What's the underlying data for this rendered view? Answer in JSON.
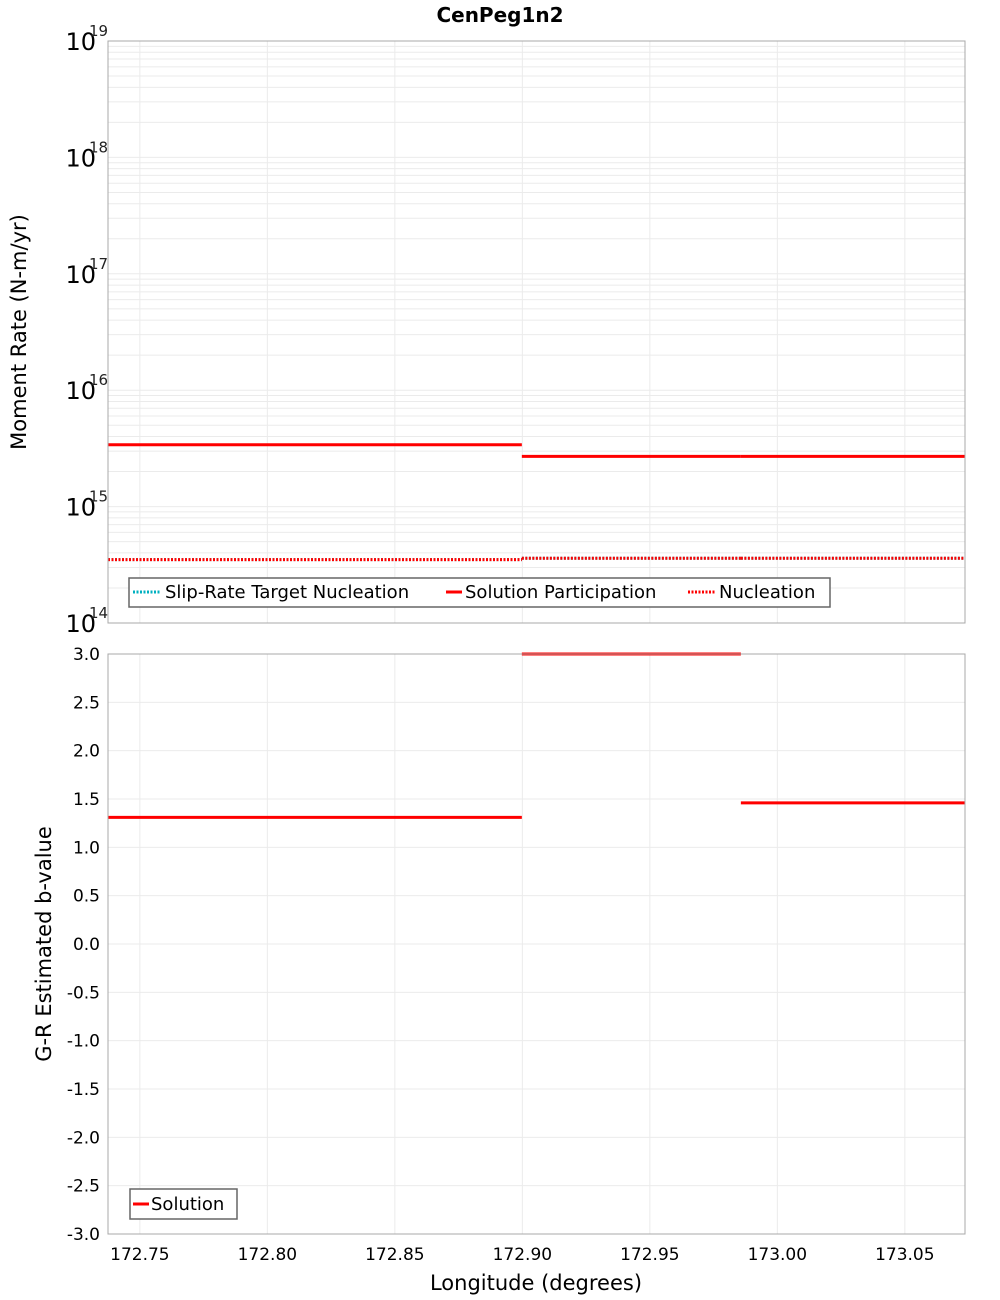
{
  "title": "CenPeg1n2",
  "top_plot": {
    "ylabel": "Moment Rate (N-m/yr)",
    "y_ticks": [
      {
        "base": "10",
        "exp": "19"
      },
      {
        "base": "10",
        "exp": "18"
      },
      {
        "base": "10",
        "exp": "17"
      },
      {
        "base": "10",
        "exp": "16"
      },
      {
        "base": "10",
        "exp": "15"
      },
      {
        "base": "10",
        "exp": "14"
      }
    ],
    "legend": [
      {
        "label": "Slip-Rate Target Nucleation",
        "color": "#00b0c0",
        "style": "dotted"
      },
      {
        "label": "Solution Participation",
        "color": "#ff0000",
        "style": "solid"
      },
      {
        "label": "Nucleation",
        "color": "#ff0000",
        "style": "dotted"
      }
    ]
  },
  "bottom_plot": {
    "ylabel": "G-R Estimated b-value",
    "y_ticks": [
      "3.0",
      "2.5",
      "2.0",
      "1.5",
      "1.0",
      "0.5",
      "0.0",
      "-0.5",
      "-1.0",
      "-1.5",
      "-2.0",
      "-2.5",
      "-3.0"
    ],
    "legend": [
      {
        "label": "Solution",
        "color": "#ff0000",
        "style": "solid"
      }
    ]
  },
  "x_axis": {
    "label": "Longitude (degrees)",
    "ticks": [
      "172.75",
      "172.80",
      "172.85",
      "172.90",
      "172.95",
      "173.00",
      "173.05"
    ]
  },
  "chart_data": [
    {
      "type": "line",
      "title": "CenPeg1n2",
      "xlabel": "Longitude (degrees)",
      "ylabel": "Moment Rate (N-m/yr)",
      "yscale": "log",
      "xlim": [
        172.7375,
        173.0736
      ],
      "ylim": [
        100000000000000.0,
        1e+19
      ],
      "grid": true,
      "legend_position": "lower-left",
      "series": [
        {
          "name": "Slip-Rate Target Nucleation",
          "style": "dotted",
          "color": "#00b0c0",
          "segments": [
            {
              "x": [
                172.7375,
                172.8998
              ],
              "y": [
                350000000000000.0,
                350000000000000.0
              ]
            },
            {
              "x": [
                172.8998,
                172.9857
              ],
              "y": [
                360000000000000.0,
                360000000000000.0
              ]
            },
            {
              "x": [
                172.9857,
                173.0736
              ],
              "y": [
                360000000000000.0,
                360000000000000.0
              ]
            }
          ]
        },
        {
          "name": "Solution Participation",
          "style": "solid",
          "color": "#ff0000",
          "segments": [
            {
              "x": [
                172.7375,
                172.8998
              ],
              "y": [
                3400000000000000.0,
                3400000000000000.0
              ]
            },
            {
              "x": [
                172.8998,
                172.9857
              ],
              "y": [
                2700000000000000.0,
                2700000000000000.0
              ]
            },
            {
              "x": [
                172.9857,
                173.0736
              ],
              "y": [
                2700000000000000.0,
                2700000000000000.0
              ]
            }
          ]
        },
        {
          "name": "Nucleation",
          "style": "dotted",
          "color": "#ff0000",
          "segments": [
            {
              "x": [
                172.7375,
                172.8998
              ],
              "y": [
                350000000000000.0,
                350000000000000.0
              ]
            },
            {
              "x": [
                172.8998,
                172.9857
              ],
              "y": [
                360000000000000.0,
                360000000000000.0
              ]
            },
            {
              "x": [
                172.9857,
                173.0736
              ],
              "y": [
                360000000000000.0,
                360000000000000.0
              ]
            }
          ]
        }
      ]
    },
    {
      "type": "line",
      "xlabel": "Longitude (degrees)",
      "ylabel": "G-R Estimated b-value",
      "xlim": [
        172.7375,
        173.0736
      ],
      "ylim": [
        -3.0,
        3.0
      ],
      "grid": true,
      "legend_position": "lower-left",
      "series": [
        {
          "name": "Solution",
          "style": "solid",
          "color": "#ff0000",
          "segments": [
            {
              "x": [
                172.7375,
                172.8998
              ],
              "y": [
                1.31,
                1.31
              ]
            },
            {
              "x": [
                172.8998,
                172.9857
              ],
              "y": [
                3.0,
                3.0
              ]
            },
            {
              "x": [
                172.9857,
                173.0736
              ],
              "y": [
                1.46,
                1.46
              ]
            }
          ]
        }
      ]
    }
  ]
}
